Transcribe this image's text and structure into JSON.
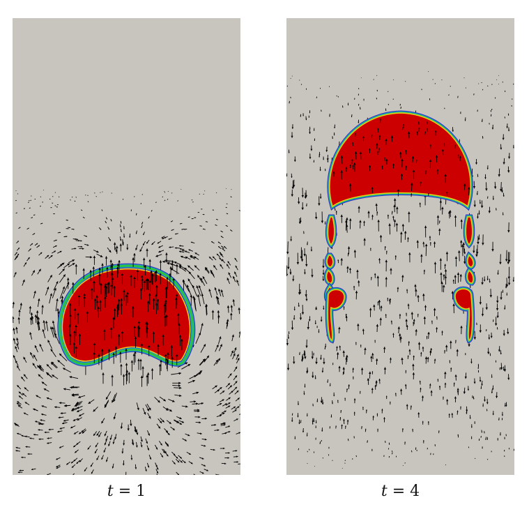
{
  "panels": [
    {
      "id": "left",
      "caption": {
        "variable": "t",
        "equals": "=",
        "value": "1"
      },
      "description_colors": {
        "background": "#c8c5bf",
        "droplet": "#cc0000",
        "interface": [
          "#2e2eb8",
          "#18a2c8",
          "#30c040",
          "#e8d020"
        ],
        "arrows": "#000000"
      }
    },
    {
      "id": "right",
      "caption": {
        "variable": "t",
        "equals": "=",
        "value": "4"
      },
      "description_colors": {
        "background": "#c8c5bf",
        "droplet": "#cc0000",
        "interface": [
          "#2e2eb8",
          "#18a2c8",
          "#30c040",
          "#e8d020"
        ],
        "arrows": "#000000"
      }
    }
  ]
}
